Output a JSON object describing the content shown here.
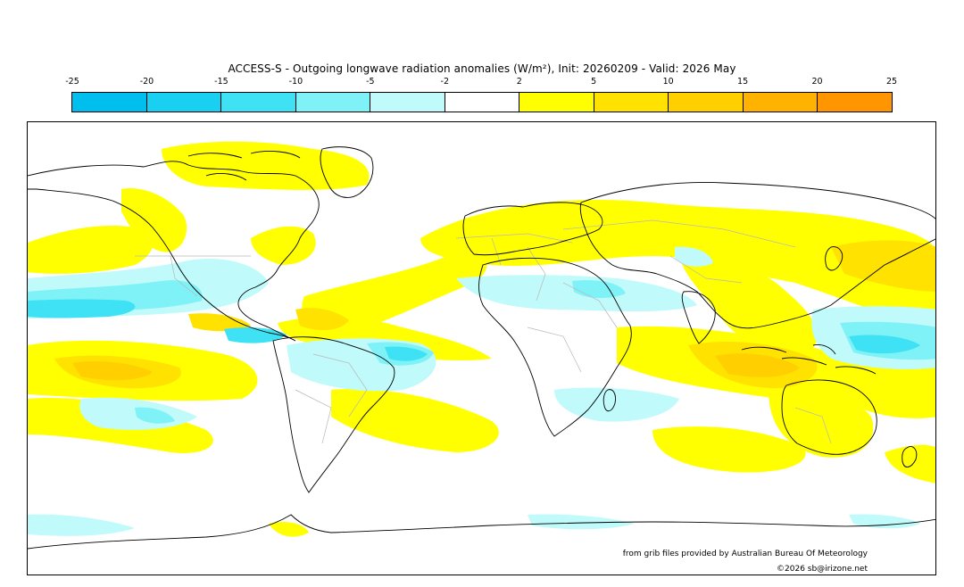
{
  "title": "ACCESS-S - Outgoing longwave radiation anomalies (W/m²), Init: 20260209 - Valid: 2026 May",
  "colorbar": {
    "ticks": [
      "-25",
      "-20",
      "-15",
      "-10",
      "-5",
      "-2",
      "2",
      "5",
      "10",
      "15",
      "20",
      "25"
    ],
    "colors": [
      "#00bfef",
      "#1ad0f2",
      "#3ee2f4",
      "#7ef2f6",
      "#c0fafa",
      "#ffffff",
      "#ffff00",
      "#ffe200",
      "#ffcf00",
      "#ffb300",
      "#ff9500"
    ]
  },
  "map": {
    "projection": "equirectangular",
    "coverage": "global",
    "colors": {
      "pos_weak": "#ffff00",
      "pos_mid": "#ffe200",
      "pos_strong": "#ffcf00",
      "pos_max": "#ffb300",
      "neg_weak": "#c0fafa",
      "neg_mid": "#7ef2f6",
      "neg_strong": "#3ee2f4",
      "neg_max": "#1ad0f2",
      "coast": "#000000",
      "border": "#b8b8b8"
    }
  },
  "credits": {
    "source": "from grib files provided by Australian Bureau Of Meteorology",
    "copyright": "©2026 sb@irizone.net"
  }
}
